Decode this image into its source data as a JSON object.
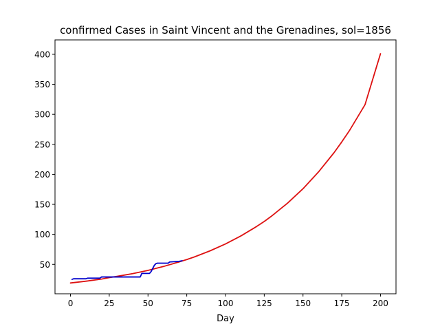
{
  "chart_data": {
    "type": "line",
    "title": "confirmed Cases in Saint Vincent and the Grenadines, sol=1856",
    "xlabel": "Day",
    "ylabel": "",
    "xlim": [
      -10,
      210
    ],
    "ylim": [
      1,
      424
    ],
    "x_ticks": [
      0,
      25,
      50,
      75,
      100,
      125,
      150,
      175,
      200
    ],
    "y_ticks": [
      50,
      100,
      150,
      200,
      250,
      300,
      350,
      400
    ],
    "grid": false,
    "legend": "none",
    "series": [
      {
        "color": "#0000cc",
        "style": "observed",
        "x": [
          1,
          2,
          10,
          11,
          19,
          20,
          24,
          25,
          45,
          46,
          51,
          52,
          54,
          55,
          56,
          63,
          64,
          70,
          72
        ],
        "y": [
          25,
          26,
          26,
          27,
          27,
          29,
          29,
          29,
          29,
          35,
          35,
          38,
          48,
          51,
          52,
          52,
          54,
          55,
          56
        ]
      },
      {
        "color": "#dd1111",
        "style": "fit",
        "x": [
          0,
          10,
          20,
          25,
          30,
          40,
          50,
          60,
          70,
          75,
          80,
          90,
          100,
          110,
          120,
          125,
          130,
          140,
          150,
          160,
          170,
          175,
          180,
          190,
          200
        ],
        "y": [
          19,
          22,
          25.5,
          28,
          30,
          34.5,
          40,
          46.5,
          54,
          58,
          62.5,
          72.5,
          84,
          97.5,
          113,
          121.5,
          131,
          152,
          176,
          204,
          236,
          254,
          273,
          316,
          401
        ]
      }
    ]
  }
}
